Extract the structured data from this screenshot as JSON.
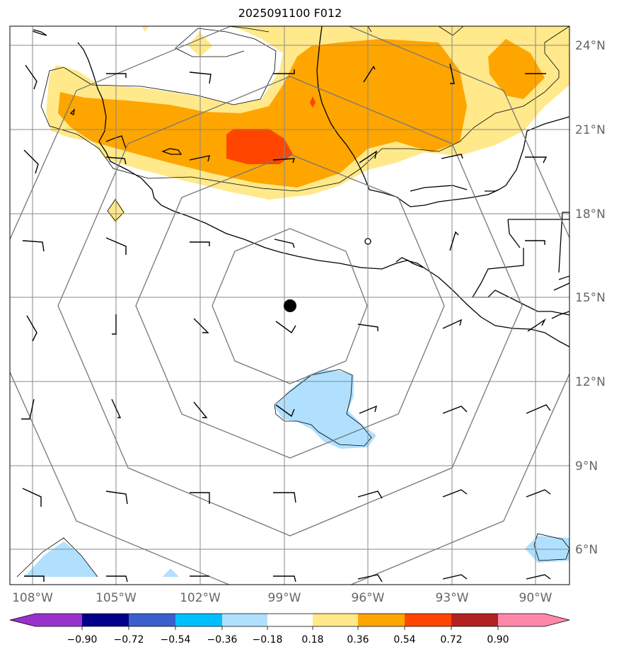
{
  "title": "2025091100 F012",
  "colors": {
    "grid": "#888888",
    "rings": "#777777",
    "coast": "#000000",
    "pos_018_036": "#ffe98a",
    "pos_036_054": "#ffa500",
    "pos_054_072": "#ff4500",
    "neg_018_036": "#b0e0fe"
  },
  "latitude_labels": [
    "24°N",
    "21°N",
    "18°N",
    "15°N",
    "12°N",
    "9°N",
    "6°N"
  ],
  "longitude_labels": [
    "108°W",
    "105°W",
    "102°W",
    "99°W",
    "96°W",
    "93°W",
    "90°W"
  ],
  "colorbar": {
    "colors": [
      "#9932cc",
      "#00008b",
      "#3a5fcd",
      "#00bfff",
      "#b0e0fe",
      "#ffffff",
      "#ffe98a",
      "#ffa500",
      "#ff4500",
      "#b22222",
      "#ff88aa"
    ],
    "tick_labels": [
      "−0.90",
      "−0.72",
      "−0.54",
      "−0.36",
      "−0.18",
      "0.18",
      "0.36",
      "0.54",
      "0.72",
      "0.90"
    ]
  },
  "storm_center": {
    "lat": 14.7,
    "lon": -98.8
  }
}
